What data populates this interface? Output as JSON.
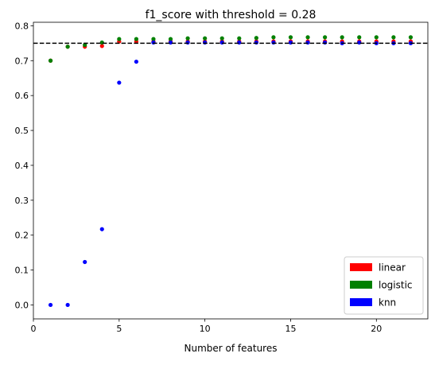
{
  "chart_data": {
    "type": "scatter",
    "title": "f1_score with threshold = 0.28",
    "xlabel": "Number of features",
    "ylabel": "",
    "xlim": [
      0,
      23
    ],
    "ylim": [
      -0.04,
      0.81
    ],
    "x_ticks": [
      0,
      5,
      10,
      15,
      20
    ],
    "y_ticks": [
      0.0,
      0.1,
      0.2,
      0.3,
      0.4,
      0.5,
      0.6,
      0.7,
      0.8
    ],
    "x_tick_labels": [
      "0",
      "5",
      "10",
      "15",
      "20"
    ],
    "y_tick_labels": [
      "0.0",
      "0.1",
      "0.2",
      "0.3",
      "0.4",
      "0.5",
      "0.6",
      "0.7",
      "0.8"
    ],
    "grid": false,
    "legend_position": "lower-right",
    "reference_line": {
      "y": 0.75,
      "style": "dashed",
      "color": "#000000"
    },
    "x": [
      1,
      2,
      3,
      4,
      5,
      6,
      7,
      8,
      9,
      10,
      11,
      12,
      13,
      14,
      15,
      16,
      17,
      18,
      19,
      20,
      21,
      22
    ],
    "series": [
      {
        "name": "linear",
        "color": "#ff0000",
        "values": [
          0.7,
          0.74,
          0.74,
          0.742,
          0.755,
          0.755,
          0.755,
          0.755,
          0.755,
          0.755,
          0.755,
          0.755,
          0.755,
          0.755,
          0.755,
          0.755,
          0.755,
          0.755,
          0.755,
          0.755,
          0.755,
          0.755
        ]
      },
      {
        "name": "logistic",
        "color": "#008000",
        "values": [
          0.7,
          0.74,
          0.745,
          0.752,
          0.762,
          0.762,
          0.762,
          0.762,
          0.764,
          0.764,
          0.764,
          0.764,
          0.765,
          0.767,
          0.767,
          0.767,
          0.767,
          0.767,
          0.767,
          0.767,
          0.767,
          0.767
        ]
      },
      {
        "name": "knn",
        "color": "#0000ff",
        "values": [
          0.0,
          0.0,
          0.123,
          0.217,
          0.637,
          0.697,
          0.752,
          0.752,
          0.752,
          0.752,
          0.752,
          0.752,
          0.752,
          0.752,
          0.752,
          0.752,
          0.752,
          0.75,
          0.752,
          0.75,
          0.75,
          0.75
        ]
      }
    ]
  }
}
